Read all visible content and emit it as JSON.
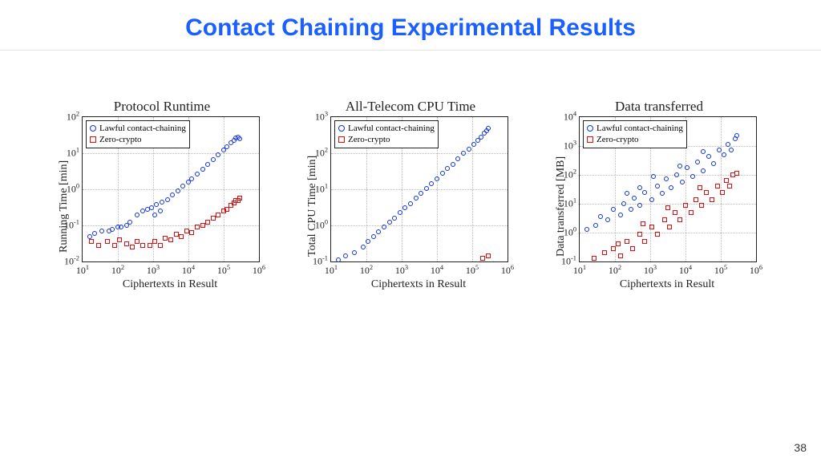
{
  "title": "Contact Chaining Experimental Results",
  "page_number": "38",
  "title_color": "#1a5fff",
  "background_color": "#ffffff",
  "series_colors": {
    "lawful": "#1030e0",
    "zero": "#e01010"
  },
  "legend_labels": {
    "lawful": "Lawful contact-chaining",
    "zero": "Zero-crypto"
  },
  "x_axis": {
    "label": "Ciphertexts in Result",
    "scale": "log",
    "ticks_exp": [
      1,
      2,
      3,
      4,
      5,
      6
    ],
    "min_exp": 1,
    "max_exp": 6
  },
  "charts": [
    {
      "title": "Protocol Runtime",
      "ylabel": "Running Time [min]",
      "ylabel_top_offset": 170,
      "y": {
        "scale": "log",
        "ticks_exp": [
          -2,
          -1,
          0,
          1,
          2
        ],
        "min_exp": -2,
        "max_exp": 2
      },
      "points": {
        "lawful": [
          [
            1.2,
            -1.3
          ],
          [
            1.35,
            -1.22
          ],
          [
            1.55,
            -1.15
          ],
          [
            1.75,
            -1.15
          ],
          [
            1.85,
            -1.1
          ],
          [
            2.0,
            -1.05
          ],
          [
            2.1,
            -1.05
          ],
          [
            2.25,
            -1.0
          ],
          [
            2.35,
            -0.92
          ],
          [
            2.55,
            -0.7
          ],
          [
            2.7,
            -0.6
          ],
          [
            2.85,
            -0.55
          ],
          [
            2.95,
            -0.52
          ],
          [
            3.1,
            -0.42
          ],
          [
            3.25,
            -0.35
          ],
          [
            3.4,
            -0.28
          ],
          [
            3.05,
            -0.7
          ],
          [
            3.2,
            -0.6
          ],
          [
            3.55,
            -0.15
          ],
          [
            3.7,
            -0.05
          ],
          [
            3.85,
            0.1
          ],
          [
            4.0,
            0.2
          ],
          [
            4.1,
            0.3
          ],
          [
            4.25,
            0.42
          ],
          [
            4.4,
            0.55
          ],
          [
            4.55,
            0.68
          ],
          [
            4.7,
            0.82
          ],
          [
            4.85,
            0.95
          ],
          [
            5.0,
            1.1
          ],
          [
            5.1,
            1.18
          ],
          [
            5.2,
            1.28
          ],
          [
            5.3,
            1.35
          ],
          [
            5.35,
            1.42
          ],
          [
            5.4,
            1.45
          ],
          [
            5.45,
            1.4
          ]
        ],
        "zero": [
          [
            1.25,
            -1.45
          ],
          [
            1.45,
            -1.55
          ],
          [
            1.7,
            -1.45
          ],
          [
            1.9,
            -1.55
          ],
          [
            2.05,
            -1.4
          ],
          [
            2.25,
            -1.5
          ],
          [
            2.4,
            -1.6
          ],
          [
            2.55,
            -1.45
          ],
          [
            2.7,
            -1.55
          ],
          [
            2.9,
            -1.55
          ],
          [
            3.05,
            -1.45
          ],
          [
            3.2,
            -1.55
          ],
          [
            3.35,
            -1.35
          ],
          [
            3.5,
            -1.4
          ],
          [
            3.65,
            -1.25
          ],
          [
            3.8,
            -1.3
          ],
          [
            3.95,
            -1.15
          ],
          [
            4.1,
            -1.2
          ],
          [
            4.25,
            -1.05
          ],
          [
            4.4,
            -1.0
          ],
          [
            4.55,
            -0.9
          ],
          [
            4.7,
            -0.8
          ],
          [
            4.85,
            -0.7
          ],
          [
            5.0,
            -0.6
          ],
          [
            5.1,
            -0.55
          ],
          [
            5.2,
            -0.45
          ],
          [
            5.3,
            -0.38
          ],
          [
            5.35,
            -0.32
          ],
          [
            5.4,
            -0.3
          ],
          [
            5.45,
            -0.25
          ]
        ]
      }
    },
    {
      "title": "All-Telecom CPU Time",
      "ylabel": "Total CPU Time [min]",
      "ylabel_top_offset": 175,
      "y": {
        "scale": "log",
        "ticks_exp": [
          -1,
          0,
          1,
          2,
          3
        ],
        "min_exp": -1,
        "max_exp": 3
      },
      "points": {
        "lawful": [
          [
            1.2,
            -0.95
          ],
          [
            1.4,
            -0.85
          ],
          [
            1.65,
            -0.75
          ],
          [
            1.9,
            -0.6
          ],
          [
            2.05,
            -0.45
          ],
          [
            2.2,
            -0.3
          ],
          [
            2.35,
            -0.18
          ],
          [
            2.5,
            -0.05
          ],
          [
            2.65,
            0.08
          ],
          [
            2.8,
            0.2
          ],
          [
            2.95,
            0.35
          ],
          [
            3.1,
            0.48
          ],
          [
            3.25,
            0.6
          ],
          [
            3.4,
            0.75
          ],
          [
            3.55,
            0.9
          ],
          [
            3.7,
            1.02
          ],
          [
            3.85,
            1.15
          ],
          [
            4.0,
            1.3
          ],
          [
            4.15,
            1.45
          ],
          [
            4.3,
            1.58
          ],
          [
            4.45,
            1.7
          ],
          [
            4.6,
            1.85
          ],
          [
            4.75,
            2.0
          ],
          [
            4.9,
            2.12
          ],
          [
            5.05,
            2.25
          ],
          [
            5.15,
            2.35
          ],
          [
            5.25,
            2.45
          ],
          [
            5.35,
            2.55
          ],
          [
            5.4,
            2.62
          ],
          [
            5.45,
            2.7
          ]
        ],
        "zero": [
          [
            5.3,
            -0.9
          ],
          [
            5.45,
            -0.85
          ]
        ]
      }
    },
    {
      "title": "Data transferred",
      "ylabel": "Data transferred [MB]",
      "ylabel_top_offset": 175,
      "y": {
        "scale": "log",
        "ticks_exp": [
          -1,
          0,
          1,
          2,
          3,
          4
        ],
        "min_exp": -1,
        "max_exp": 4
      },
      "points": {
        "lawful": [
          [
            1.2,
            0.1
          ],
          [
            1.45,
            0.25
          ],
          [
            1.6,
            0.55
          ],
          [
            1.8,
            0.45
          ],
          [
            1.95,
            0.8
          ],
          [
            2.15,
            0.6
          ],
          [
            2.25,
            1.0
          ],
          [
            2.45,
            0.8
          ],
          [
            2.55,
            1.2
          ],
          [
            2.7,
            0.95
          ],
          [
            2.85,
            1.4
          ],
          [
            3.05,
            1.15
          ],
          [
            3.2,
            1.6
          ],
          [
            3.35,
            1.35
          ],
          [
            3.45,
            1.85
          ],
          [
            3.6,
            1.55
          ],
          [
            3.75,
            2.0
          ],
          [
            3.9,
            1.75
          ],
          [
            4.05,
            2.25
          ],
          [
            4.2,
            1.95
          ],
          [
            4.35,
            2.45
          ],
          [
            4.5,
            2.15
          ],
          [
            4.65,
            2.65
          ],
          [
            4.8,
            2.4
          ],
          [
            4.95,
            2.85
          ],
          [
            5.1,
            2.7
          ],
          [
            5.2,
            3.05
          ],
          [
            5.3,
            2.85
          ],
          [
            5.4,
            3.25
          ],
          [
            5.45,
            3.35
          ],
          [
            2.35,
            1.35
          ],
          [
            2.7,
            1.55
          ],
          [
            3.1,
            1.95
          ],
          [
            3.85,
            2.3
          ],
          [
            4.5,
            2.8
          ]
        ],
        "zero": [
          [
            1.4,
            -0.9
          ],
          [
            1.7,
            -0.7
          ],
          [
            1.95,
            -0.55
          ],
          [
            2.15,
            -0.8
          ],
          [
            2.35,
            -0.3
          ],
          [
            2.5,
            -0.55
          ],
          [
            2.7,
            -0.05
          ],
          [
            2.85,
            -0.3
          ],
          [
            3.05,
            0.2
          ],
          [
            3.2,
            -0.05
          ],
          [
            3.4,
            0.45
          ],
          [
            3.55,
            0.2
          ],
          [
            3.7,
            0.7
          ],
          [
            3.85,
            0.45
          ],
          [
            4.0,
            0.95
          ],
          [
            4.15,
            0.7
          ],
          [
            4.3,
            1.15
          ],
          [
            4.45,
            0.95
          ],
          [
            4.6,
            1.4
          ],
          [
            4.75,
            1.15
          ],
          [
            4.9,
            1.6
          ],
          [
            5.05,
            1.4
          ],
          [
            5.15,
            1.8
          ],
          [
            5.25,
            1.6
          ],
          [
            5.35,
            2.0
          ],
          [
            5.45,
            2.05
          ],
          [
            2.1,
            -0.4
          ],
          [
            2.8,
            0.3
          ],
          [
            3.5,
            0.85
          ],
          [
            4.4,
            1.55
          ]
        ]
      }
    }
  ]
}
